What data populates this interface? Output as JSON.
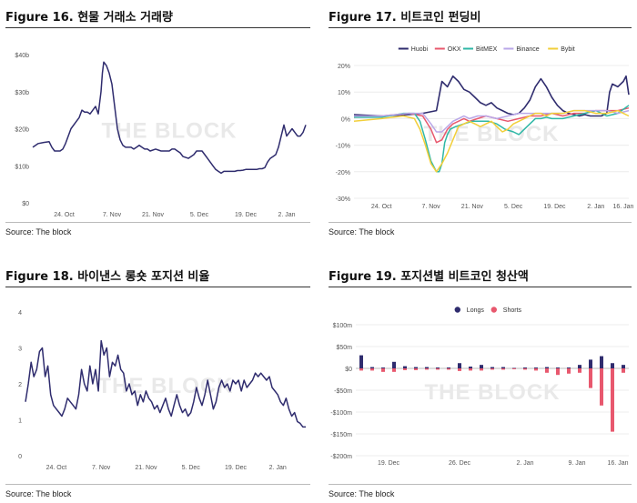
{
  "chart_data": [
    {
      "id": "fig16",
      "type": "line",
      "figure_label": "Figure 16.",
      "title": "현물 거래소 거래량",
      "source": "Source: The block",
      "watermark": "THE BLOCK",
      "ylim": [
        0,
        40
      ],
      "yticks": [
        0,
        10,
        20,
        30,
        40
      ],
      "ytick_labels": [
        "$0",
        "$10b",
        "$20b",
        "$30b",
        "$40b"
      ],
      "xlim": [
        0,
        100
      ],
      "xticks": [
        11.5,
        29,
        44,
        61,
        78,
        93
      ],
      "xtick_labels": [
        "24. Oct",
        "7. Nov",
        "21. Nov",
        "5. Dec",
        "19. Dec",
        "2. Jan"
      ],
      "grid": false,
      "series": [
        {
          "color": "#2f2c6e",
          "x": [
            0,
            2,
            4,
            6,
            7,
            8,
            9,
            10,
            11,
            12,
            13,
            14,
            16,
            17,
            18,
            19,
            20,
            21,
            22,
            23,
            24,
            25,
            25.5,
            26,
            27,
            27.5,
            28,
            29,
            30,
            31,
            32,
            33,
            34,
            35,
            36,
            37,
            38,
            39,
            40,
            41,
            42,
            43,
            45,
            47,
            49,
            50,
            51,
            52,
            53,
            54,
            55,
            57,
            59,
            60,
            61,
            62,
            63,
            64,
            65,
            66,
            67,
            68,
            69,
            70,
            71,
            72,
            73,
            74,
            75,
            76,
            77,
            78,
            79,
            80,
            81,
            82,
            83,
            84,
            85,
            86,
            87,
            88,
            89,
            90,
            91,
            92,
            93,
            94,
            95,
            96,
            97,
            98,
            99,
            100
          ],
          "y": [
            15,
            16,
            16.3,
            16.5,
            15,
            14,
            14,
            14,
            14.5,
            16,
            18,
            20,
            22,
            23,
            25,
            24.5,
            24.5,
            24,
            25,
            26,
            24,
            30,
            35,
            38,
            37,
            36,
            35,
            32,
            26,
            20,
            17,
            15.5,
            15,
            15,
            15,
            14.5,
            15,
            15.5,
            15,
            14.5,
            14.5,
            14,
            14.5,
            14,
            14,
            14,
            14.5,
            14.5,
            14,
            13.5,
            12.5,
            12,
            13,
            14,
            14,
            14,
            13,
            12,
            11,
            10,
            9,
            8.5,
            8,
            8.5,
            8.5,
            8.5,
            8.5,
            8.5,
            8.7,
            8.7,
            8.8,
            9,
            9,
            9,
            9,
            9,
            9.2,
            9.2,
            9.5,
            11,
            12,
            12.5,
            13,
            15,
            18,
            21,
            18,
            19,
            20,
            19,
            18,
            18,
            19,
            21
          ]
        }
      ]
    },
    {
      "id": "fig17",
      "type": "line",
      "figure_label": "Figure 17.",
      "title": "비트코인 펀딩비",
      "source": "Source: The block",
      "watermark": "THE BLOCK",
      "ylim": [
        -30,
        20
      ],
      "yticks": [
        -30,
        -20,
        -10,
        0,
        10,
        20
      ],
      "ytick_labels": [
        "-30%",
        "-20%",
        "-10%",
        "0%",
        "10%",
        "20%"
      ],
      "xlim": [
        0,
        100
      ],
      "xticks": [
        10,
        28,
        43,
        58,
        73,
        88,
        98
      ],
      "xtick_labels": [
        "24. Oct",
        "7. Nov",
        "21. Nov",
        "5. Dec",
        "19. Dec",
        "2. Jan",
        "16. Jan"
      ],
      "grid": true,
      "legend": {
        "position": "top",
        "labels": [
          "Huobi",
          "OKX",
          "BitMEX",
          "Binance",
          "Bybit"
        ],
        "colors": [
          "#2f2c6e",
          "#e8586e",
          "#2fb7a6",
          "#b9a7e8",
          "#f2cf3a"
        ]
      },
      "series": [
        {
          "name": "Huobi",
          "color": "#2f2c6e",
          "x": [
            0,
            10,
            20,
            25,
            30,
            32,
            34,
            36,
            38,
            40,
            42,
            44,
            46,
            48,
            50,
            52,
            54,
            56,
            58,
            60,
            62,
            64,
            66,
            68,
            70,
            72,
            74,
            76,
            78,
            80,
            82,
            84,
            86,
            88,
            90,
            92,
            93,
            94,
            96,
            98,
            99,
            100
          ],
          "y": [
            1.5,
            1,
            1.5,
            2,
            3,
            14,
            12,
            16,
            14,
            11,
            10,
            8,
            6,
            5,
            6,
            4,
            3,
            2,
            1.5,
            2,
            4,
            7,
            12,
            15,
            12,
            8,
            5,
            3,
            2,
            1.5,
            1,
            1.5,
            1,
            1,
            1,
            2,
            10,
            13,
            12,
            14,
            16,
            9
          ]
        },
        {
          "name": "OKX",
          "color": "#e8586e",
          "x": [
            0,
            10,
            20,
            25,
            28,
            30,
            32,
            34,
            36,
            38,
            40,
            42,
            45,
            48,
            52,
            56,
            60,
            64,
            68,
            72,
            76,
            80,
            84,
            88,
            92,
            96,
            100
          ],
          "y": [
            0.5,
            1,
            2,
            1,
            -4,
            -9,
            -8,
            -4,
            -2,
            -1,
            0,
            -1,
            0,
            1,
            0,
            -1,
            0,
            1,
            1,
            2,
            1,
            2,
            2,
            3,
            3,
            3,
            4
          ]
        },
        {
          "name": "BitMEX",
          "color": "#2fb7a6",
          "x": [
            0,
            10,
            18,
            22,
            24,
            26,
            28,
            30,
            31,
            32,
            33,
            34,
            35,
            37,
            40,
            43,
            46,
            49,
            52,
            55,
            58,
            60,
            62,
            64,
            66,
            68,
            70,
            72,
            76,
            80,
            84,
            88,
            92,
            96,
            100
          ],
          "y": [
            0.5,
            0.5,
            2,
            2,
            -1,
            -8,
            -16,
            -20,
            -20,
            -17,
            -9,
            -6,
            -4,
            -3,
            -2,
            -1,
            -1,
            -1,
            -2,
            -4,
            -5,
            -6,
            -4,
            -2,
            0,
            0,
            0.5,
            0,
            0,
            1,
            2,
            3,
            1,
            2,
            5
          ]
        },
        {
          "name": "Binance",
          "color": "#b9a7e8",
          "x": [
            0,
            10,
            20,
            25,
            28,
            30,
            32,
            34,
            36,
            38,
            40,
            42,
            45,
            48,
            52,
            56,
            60,
            64,
            68,
            72,
            76,
            80,
            84,
            88,
            92,
            96,
            100
          ],
          "y": [
            1,
            1,
            2,
            2,
            -2,
            -5,
            -5,
            -3,
            -1,
            0,
            1,
            0,
            1,
            1,
            0,
            1,
            2,
            2,
            2,
            2,
            2,
            3,
            3,
            3,
            3,
            2,
            3
          ]
        },
        {
          "name": "Bybit",
          "color": "#f2cf3a",
          "x": [
            0,
            10,
            18,
            22,
            24,
            26,
            28,
            30,
            32,
            34,
            36,
            38,
            40,
            42,
            44,
            46,
            48,
            50,
            52,
            54,
            56,
            58,
            60,
            62,
            64,
            66,
            68,
            70,
            72,
            76,
            80,
            84,
            88,
            92,
            96,
            100
          ],
          "y": [
            -1,
            0,
            1,
            0,
            -4,
            -10,
            -17,
            -20,
            -17,
            -13,
            -8,
            -3,
            -2,
            -1,
            -2,
            -3,
            -2,
            -1,
            -3,
            -5,
            -4,
            -2,
            -1,
            0,
            1,
            2,
            2,
            1,
            2,
            2,
            3,
            3,
            2,
            2,
            3,
            1
          ]
        }
      ]
    },
    {
      "id": "fig18",
      "type": "line",
      "figure_label": "Figure 18.",
      "title": "바이낸스 롱숏 포지션 비율",
      "source": "Source: The block",
      "watermark": "THE BLOCK",
      "ylim": [
        0,
        4
      ],
      "yticks": [
        0,
        1,
        2,
        3,
        4
      ],
      "ytick_labels": [
        "0",
        "1",
        "2",
        "3",
        "4"
      ],
      "xlim": [
        0,
        100
      ],
      "xticks": [
        11,
        27,
        43,
        59,
        75,
        90
      ],
      "xtick_labels": [
        "24. Oct",
        "7. Nov",
        "21. Nov",
        "5. Dec",
        "19. Dec",
        "2. Jan"
      ],
      "grid": false,
      "series": [
        {
          "color": "#2f2c6e",
          "x": [
            0,
            1,
            2,
            3,
            4,
            5,
            6,
            7,
            8,
            9,
            10,
            11,
            12,
            13,
            14,
            15,
            16,
            17,
            18,
            19,
            20,
            21,
            22,
            23,
            24,
            25,
            26,
            27,
            28,
            29,
            30,
            31,
            32,
            33,
            34,
            35,
            36,
            37,
            38,
            39,
            40,
            41,
            42,
            43,
            44,
            45,
            46,
            47,
            48,
            49,
            50,
            51,
            52,
            53,
            54,
            55,
            56,
            57,
            58,
            59,
            60,
            61,
            62,
            63,
            64,
            65,
            66,
            67,
            68,
            69,
            70,
            71,
            72,
            73,
            74,
            75,
            76,
            77,
            78,
            79,
            80,
            81,
            82,
            83,
            84,
            85,
            86,
            87,
            88,
            89,
            90,
            91,
            92,
            93,
            94,
            95,
            96,
            97,
            98,
            99,
            100
          ],
          "y": [
            1.5,
            2.0,
            2.6,
            2.2,
            2.4,
            2.9,
            3.0,
            2.2,
            2.5,
            1.7,
            1.4,
            1.3,
            1.2,
            1.1,
            1.3,
            1.6,
            1.5,
            1.4,
            1.3,
            1.7,
            2.4,
            2.0,
            1.8,
            2.5,
            2.0,
            2.4,
            1.8,
            3.2,
            2.8,
            3.0,
            2.2,
            2.6,
            2.5,
            2.8,
            2.4,
            2.3,
            1.8,
            2.0,
            1.7,
            1.8,
            1.4,
            1.7,
            1.5,
            1.8,
            1.6,
            1.5,
            1.3,
            1.4,
            1.2,
            1.4,
            1.6,
            1.3,
            1.1,
            1.4,
            1.7,
            1.4,
            1.2,
            1.3,
            1.1,
            1.2,
            1.5,
            1.9,
            1.6,
            1.4,
            1.7,
            2.1,
            1.7,
            1.3,
            1.5,
            1.9,
            2.1,
            1.9,
            2.0,
            1.8,
            2.1,
            2.0,
            2.1,
            1.8,
            2.1,
            1.9,
            2.0,
            2.1,
            2.3,
            2.2,
            2.3,
            2.2,
            2.1,
            2.2,
            1.9,
            1.8,
            1.7,
            1.5,
            1.4,
            1.6,
            1.3,
            1.1,
            1.2,
            0.95,
            0.9,
            0.8,
            0.8
          ]
        }
      ]
    },
    {
      "id": "fig19",
      "type": "bar",
      "figure_label": "Figure 19.",
      "title": "포지션별 비트코인 청산액",
      "source": "Source: The block",
      "watermark": "THE BLOCK",
      "ylim": [
        -200,
        100
      ],
      "yticks": [
        -200,
        -150,
        -100,
        -50,
        0,
        50,
        100
      ],
      "ytick_labels": [
        "-$200m",
        "-$150m",
        "-$100m",
        "-$50m",
        "$0",
        "$50m",
        "$100m"
      ],
      "xlim": [
        0,
        100
      ],
      "xticks": [
        12,
        38,
        62,
        81,
        96
      ],
      "xtick_labels": [
        "19. Dec",
        "26. Dec",
        "2. Jan",
        "9. Jan",
        "16. Jan"
      ],
      "grid": true,
      "legend": {
        "position": "top",
        "labels": [
          "Longs",
          "Shorts"
        ],
        "colors": [
          "#2f2c6e",
          "#e8586e"
        ]
      },
      "series": [
        {
          "name": "Longs",
          "color": "#2f2c6e",
          "x": [
            2,
            6,
            10,
            14,
            18,
            22,
            26,
            30,
            34,
            38,
            42,
            46,
            50,
            54,
            58,
            62,
            66,
            70,
            74,
            78,
            82,
            86,
            90,
            94,
            98
          ],
          "values": [
            30,
            3,
            2,
            15,
            5,
            3,
            3,
            2,
            2,
            12,
            4,
            8,
            3,
            3,
            1,
            2,
            2,
            3,
            2,
            2,
            8,
            20,
            28,
            12,
            8
          ]
        },
        {
          "name": "Shorts",
          "color": "#e8586e",
          "x": [
            2,
            6,
            10,
            14,
            18,
            22,
            26,
            30,
            34,
            38,
            42,
            46,
            50,
            54,
            58,
            62,
            66,
            70,
            74,
            78,
            82,
            86,
            90,
            94,
            98
          ],
          "values": [
            -5,
            -5,
            -8,
            -8,
            -4,
            -4,
            -3,
            -3,
            -3,
            -6,
            -5,
            -5,
            -3,
            -3,
            -2,
            -3,
            -5,
            -10,
            -15,
            -12,
            -10,
            -45,
            -85,
            -145,
            -10
          ]
        }
      ]
    }
  ]
}
